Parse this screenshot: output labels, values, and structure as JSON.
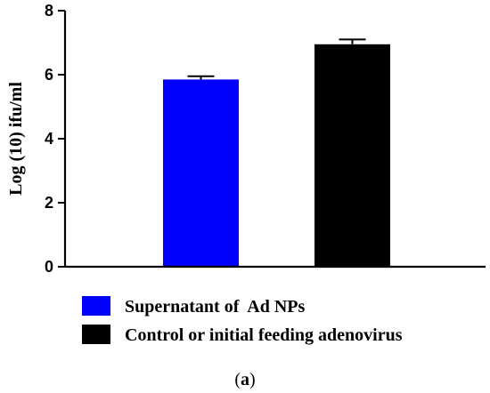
{
  "chart_data": {
    "type": "bar",
    "ylabel": "Log (10) ifu/ml",
    "ylim": [
      0,
      8
    ],
    "yticks": [
      0,
      2,
      4,
      6,
      8
    ],
    "grid": false,
    "legend_position": "bottom",
    "series": [
      {
        "name": "Supernatant of  Ad NPs",
        "value": 5.85,
        "error": 0.1,
        "color": "#0000ff"
      },
      {
        "name": "Control or initial feeding adenovirus",
        "value": 6.95,
        "error": 0.15,
        "color": "#000000"
      }
    ]
  },
  "caption": {
    "open": "(",
    "letter": "a",
    "close": ")"
  }
}
